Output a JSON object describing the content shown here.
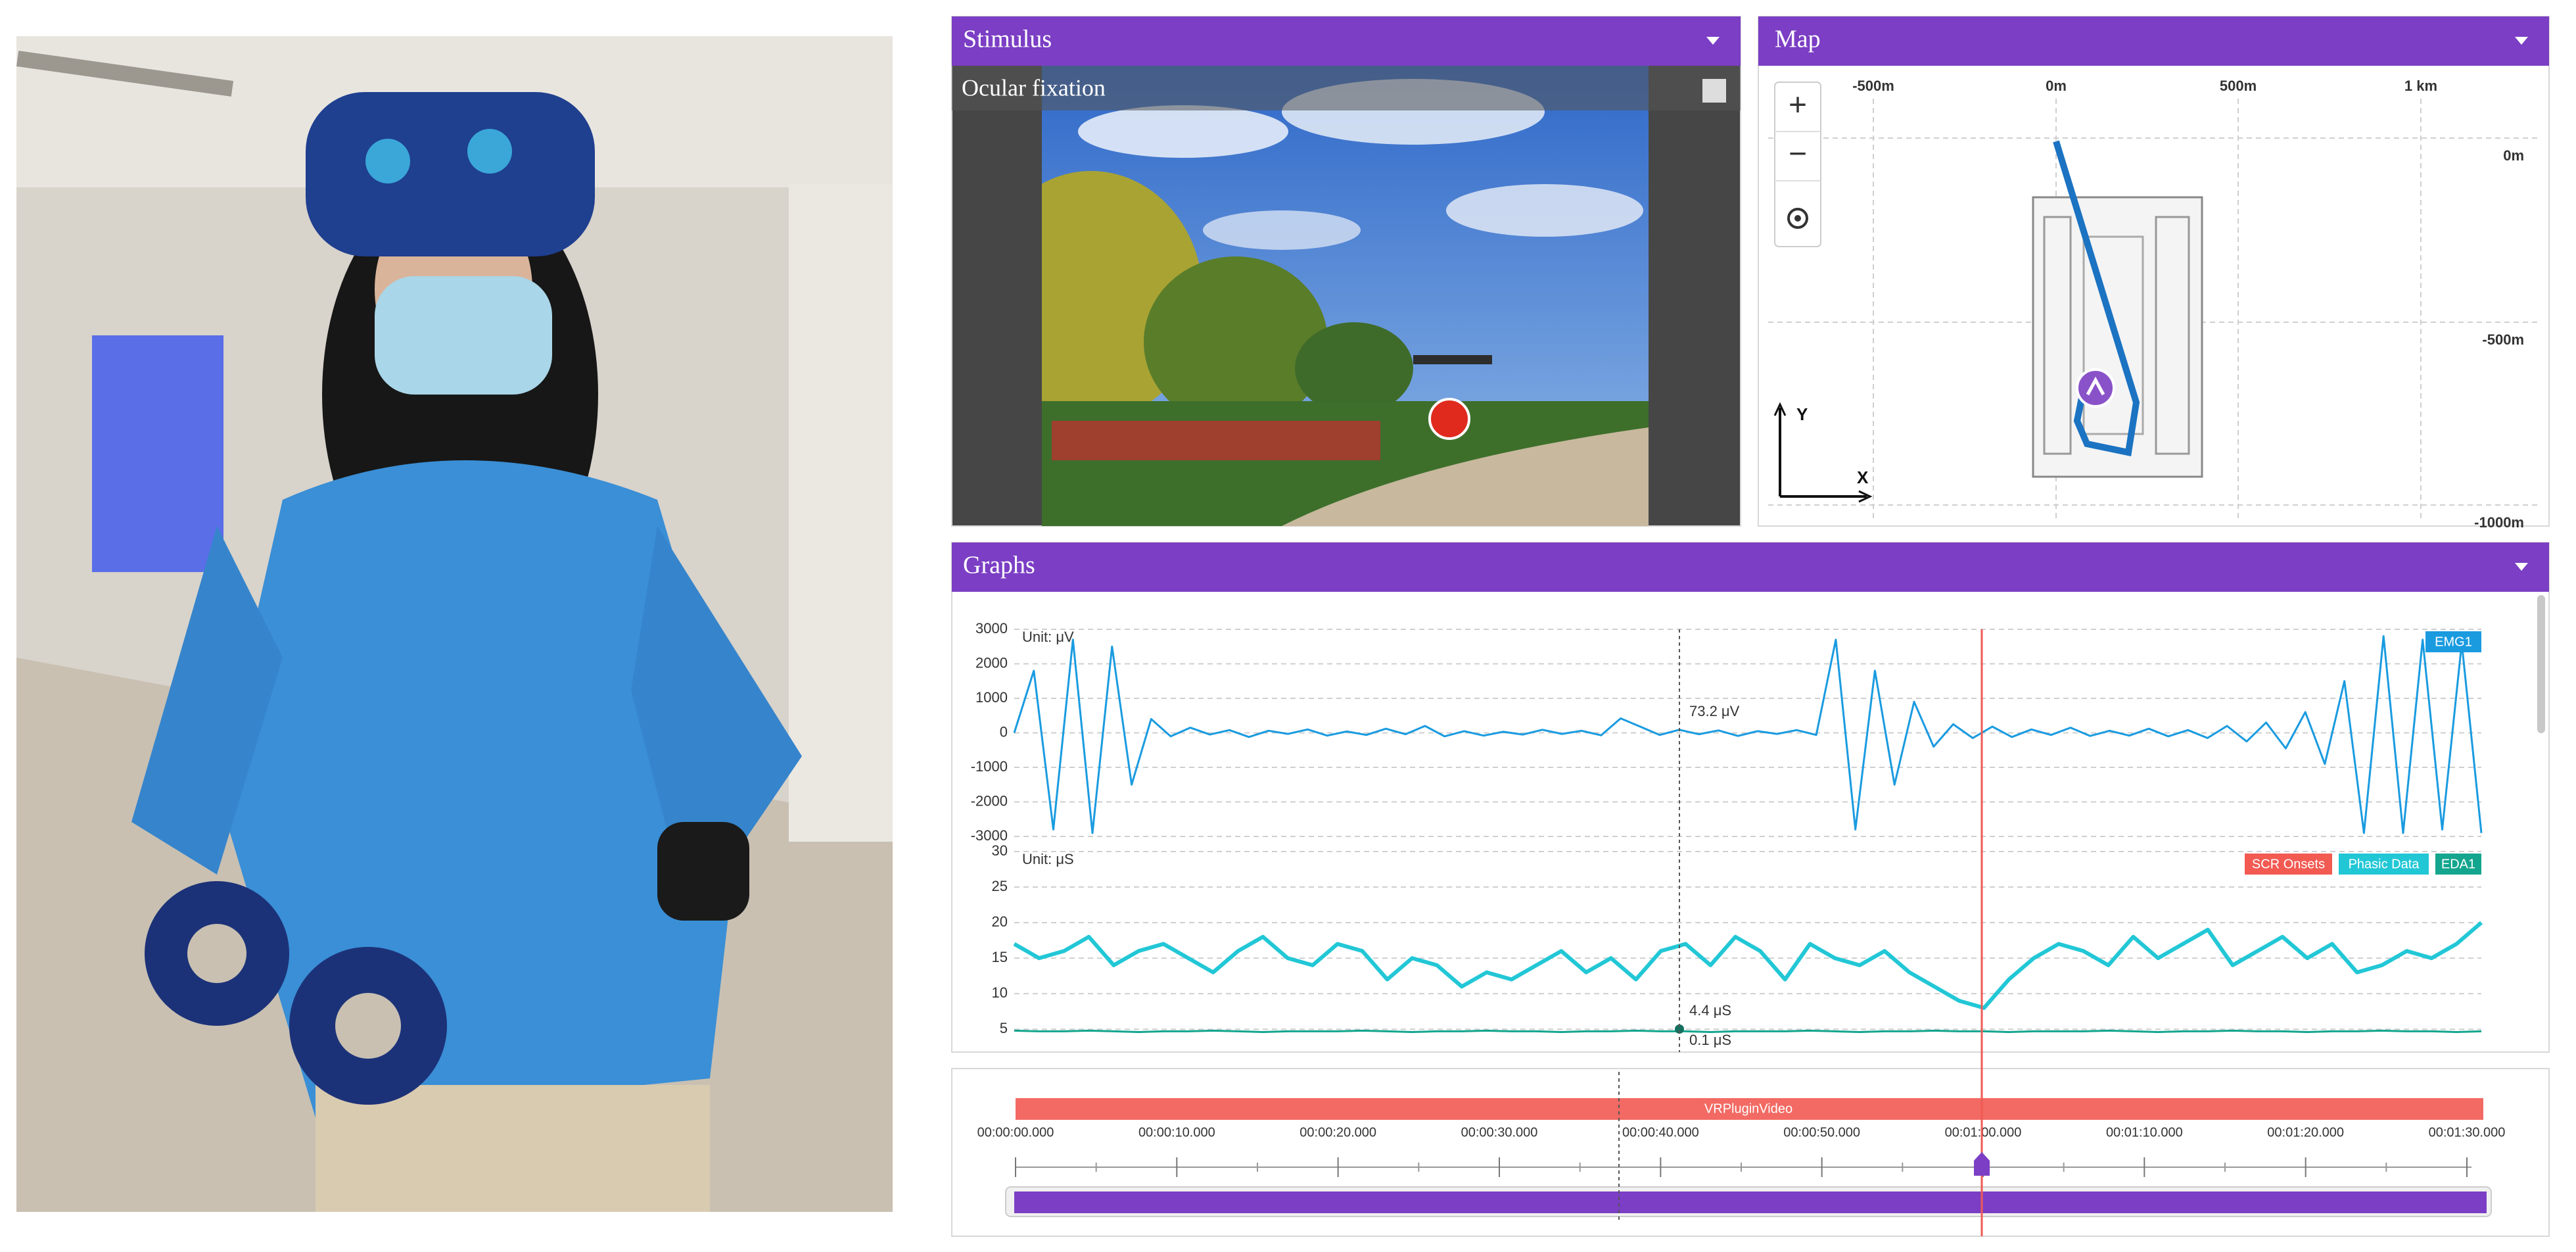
{
  "stimulus": {
    "title": "Stimulus",
    "caption": "Ocular fixation"
  },
  "map": {
    "title": "Map",
    "zoom_in": "+",
    "zoom_out": "−",
    "x_labels": [
      "-500m",
      "0m",
      "500m",
      "1 km"
    ],
    "y_labels": [
      "0m",
      "-500m",
      "-1000m"
    ],
    "axis_y": "Y",
    "axis_x": "X"
  },
  "graphs": {
    "title": "Graphs"
  },
  "chart_data": [
    {
      "type": "line",
      "unit_label": "Unit: μV",
      "ylim": [
        -3000,
        3000
      ],
      "yticks": [
        3000,
        2000,
        1000,
        0,
        -1000,
        -2000,
        -3000
      ],
      "grid": true,
      "annotations": [
        "73.2 μV"
      ],
      "series": [
        {
          "name": "EMG1",
          "color": "#1a9be0",
          "values": [
            0,
            1800,
            -2800,
            2700,
            -2900,
            2500,
            -1500,
            400,
            -100,
            150,
            -50,
            80,
            -120,
            60,
            -30,
            100,
            -80,
            40,
            -60,
            120,
            -40,
            200,
            -100,
            50,
            -80,
            30,
            -50,
            90,
            -30,
            60,
            -70,
            420,
            180,
            -60,
            90,
            -40,
            70,
            -90,
            50,
            -30,
            80,
            -60,
            2700,
            -2800,
            1800,
            -1500,
            900,
            -400,
            250,
            -150,
            180,
            -120,
            100,
            -60,
            150,
            -90,
            60,
            -80,
            120,
            -100,
            80,
            -150,
            200,
            -250,
            300,
            -450,
            600,
            -900,
            1500,
            -2900,
            2800,
            -2900,
            2700,
            -2800,
            2600,
            -2900
          ]
        }
      ]
    },
    {
      "type": "line",
      "unit_label": "Unit: μS",
      "ylim": [
        4,
        30
      ],
      "yticks": [
        30,
        25,
        20,
        15,
        10,
        5
      ],
      "grid": true,
      "annotations": [
        "4.4 μS",
        "0.1 μS"
      ],
      "series": [
        {
          "name": "SCR Onsets",
          "color": "#f25a52",
          "values": [
            null,
            null,
            null,
            null,
            null,
            null,
            null,
            null,
            null,
            null,
            null,
            null,
            null,
            null,
            null,
            null,
            null,
            null,
            null,
            null,
            null,
            null,
            null,
            null,
            null,
            null,
            null,
            null,
            null,
            null,
            null,
            null,
            null,
            null,
            null,
            null,
            null,
            null,
            null,
            null,
            null,
            null,
            null,
            null,
            null,
            null,
            null,
            null,
            null,
            null,
            null,
            null,
            null,
            null,
            null,
            null,
            null,
            null,
            null,
            null
          ]
        },
        {
          "name": "Phasic Data",
          "color": "#22c7d6",
          "values": [
            17,
            15,
            16,
            18,
            14,
            16,
            17,
            15,
            13,
            16,
            18,
            15,
            14,
            17,
            16,
            12,
            15,
            14,
            11,
            13,
            12,
            14,
            16,
            13,
            15,
            12,
            16,
            17,
            14,
            18,
            16,
            12,
            17,
            15,
            14,
            16,
            13,
            11,
            9,
            8,
            12,
            15,
            17,
            16,
            14,
            18,
            15,
            17,
            19,
            14,
            16,
            18,
            15,
            17,
            13,
            14,
            16,
            15,
            17,
            20
          ]
        },
        {
          "name": "EDA1",
          "color": "#13a58e",
          "values": [
            4.8,
            4.7,
            4.7,
            4.8,
            4.7,
            4.6,
            4.7,
            4.7,
            4.8,
            4.7,
            4.6,
            4.7,
            4.7,
            4.7,
            4.8,
            4.7,
            4.6,
            4.7,
            4.7,
            4.8,
            4.7,
            4.7,
            4.6,
            4.7,
            4.7,
            4.8,
            4.7,
            4.7,
            4.6,
            4.7,
            4.7,
            4.7,
            4.8,
            4.7,
            4.6,
            4.7,
            4.7,
            4.8,
            4.7,
            4.7,
            4.6,
            4.7,
            4.7,
            4.7,
            4.8,
            4.7,
            4.6,
            4.7,
            4.7,
            4.8,
            4.7,
            4.7,
            4.6,
            4.7,
            4.7,
            4.8,
            4.7,
            4.7,
            4.6,
            4.7
          ]
        }
      ]
    }
  ],
  "timeline": {
    "track": "VRPluginVideo",
    "ticks": [
      "00:00:00.000",
      "00:00:10.000",
      "00:00:20.000",
      "00:00:30.000",
      "00:00:40.000",
      "00:00:50.000",
      "00:01:00.000",
      "00:01:10.000",
      "00:01:20.000",
      "00:01:30.000"
    ]
  }
}
